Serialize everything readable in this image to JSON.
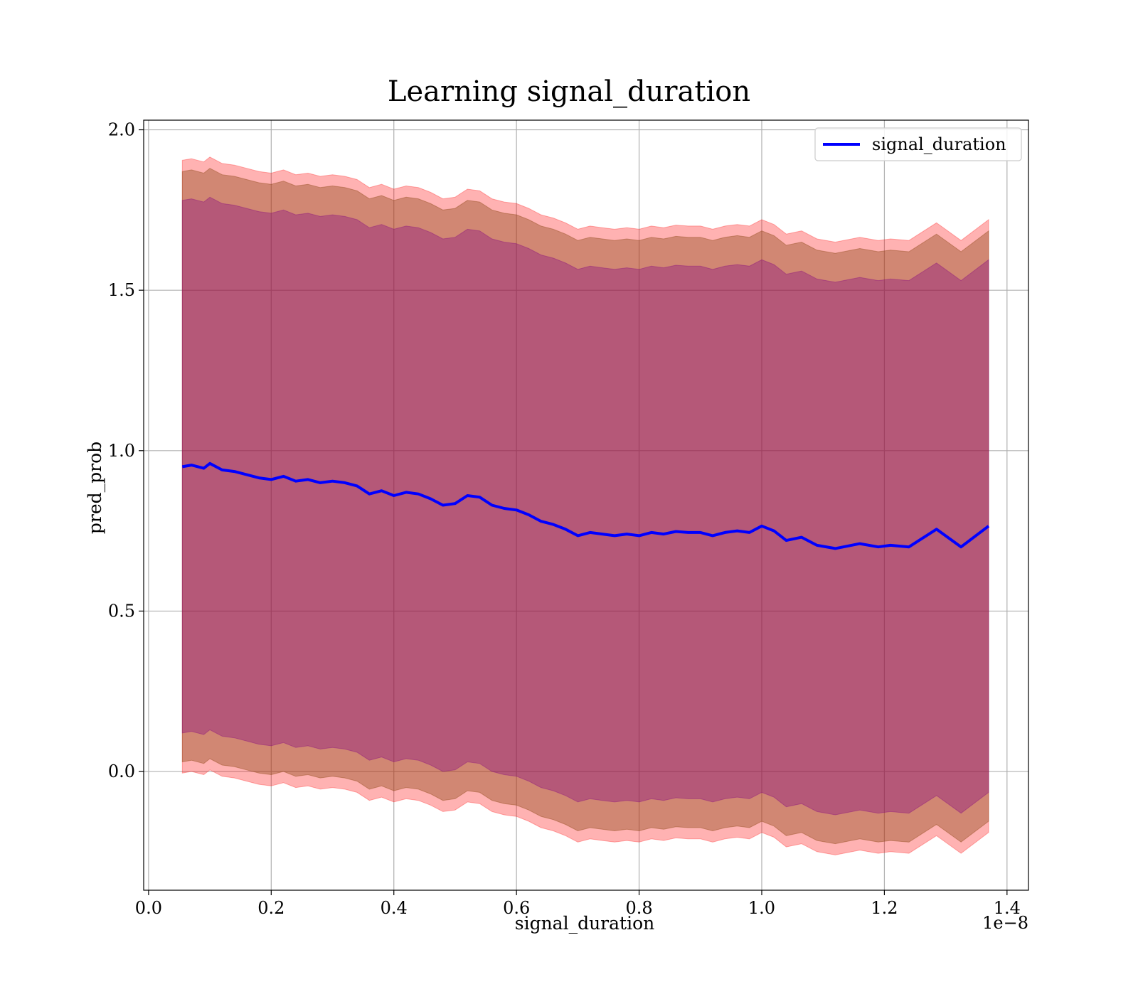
{
  "chart_data": {
    "type": "area",
    "title": "Learning signal_duration",
    "xlabel": "signal_duration",
    "ylabel": "pred_prob",
    "x_offset_label": "1e−8",
    "x_tick_labels": [
      "0.0",
      "0.2",
      "0.4",
      "0.6",
      "0.8",
      "1.0",
      "1.2",
      "1.4"
    ],
    "x_ticks": [
      0.0,
      0.2,
      0.4,
      0.6,
      0.8,
      1.0,
      1.2,
      1.4
    ],
    "y_tick_labels": [
      "0.0",
      "0.5",
      "1.0",
      "1.5",
      "2.0"
    ],
    "y_ticks": [
      0.0,
      0.5,
      1.0,
      1.5,
      2.0
    ],
    "xlim": [
      -0.008,
      1.435
    ],
    "ylim": [
      -0.37,
      2.03
    ],
    "grid": true,
    "legend": {
      "position": "upper right",
      "entries": [
        "signal_duration"
      ]
    },
    "colors": {
      "mean_line": "#0000ff",
      "band_outer": "#ff0000",
      "band_middle": "#8b4513",
      "band_inner": "#800080"
    },
    "series": [
      {
        "name": "signal_duration",
        "x": [
          0.055,
          0.07,
          0.09,
          0.1,
          0.12,
          0.14,
          0.16,
          0.18,
          0.2,
          0.22,
          0.24,
          0.26,
          0.28,
          0.3,
          0.32,
          0.34,
          0.36,
          0.38,
          0.4,
          0.42,
          0.44,
          0.46,
          0.48,
          0.5,
          0.52,
          0.54,
          0.56,
          0.58,
          0.6,
          0.62,
          0.64,
          0.66,
          0.68,
          0.7,
          0.72,
          0.74,
          0.76,
          0.78,
          0.8,
          0.82,
          0.84,
          0.86,
          0.88,
          0.9,
          0.92,
          0.94,
          0.96,
          0.98,
          1.0,
          1.02,
          1.04,
          1.065,
          1.09,
          1.12,
          1.16,
          1.19,
          1.21,
          1.24,
          1.285,
          1.325,
          1.37
        ],
        "y": [
          0.95,
          0.955,
          0.945,
          0.96,
          0.94,
          0.935,
          0.925,
          0.915,
          0.91,
          0.92,
          0.905,
          0.91,
          0.9,
          0.905,
          0.9,
          0.89,
          0.865,
          0.875,
          0.86,
          0.87,
          0.865,
          0.85,
          0.83,
          0.835,
          0.86,
          0.855,
          0.83,
          0.82,
          0.815,
          0.8,
          0.78,
          0.77,
          0.755,
          0.735,
          0.745,
          0.74,
          0.735,
          0.74,
          0.735,
          0.745,
          0.74,
          0.748,
          0.745,
          0.745,
          0.735,
          0.745,
          0.75,
          0.745,
          0.765,
          0.75,
          0.72,
          0.73,
          0.705,
          0.695,
          0.71,
          0.7,
          0.705,
          0.7,
          0.755,
          0.7,
          0.765
        ]
      }
    ],
    "bands": [
      {
        "name": "outer",
        "half_width_upper": 0.955,
        "half_width_lower": 0.955
      },
      {
        "name": "middle",
        "half_width_upper": 0.92,
        "half_width_lower": 0.92
      },
      {
        "name": "inner",
        "half_width_upper": 0.83,
        "half_width_lower": 0.83
      }
    ]
  }
}
